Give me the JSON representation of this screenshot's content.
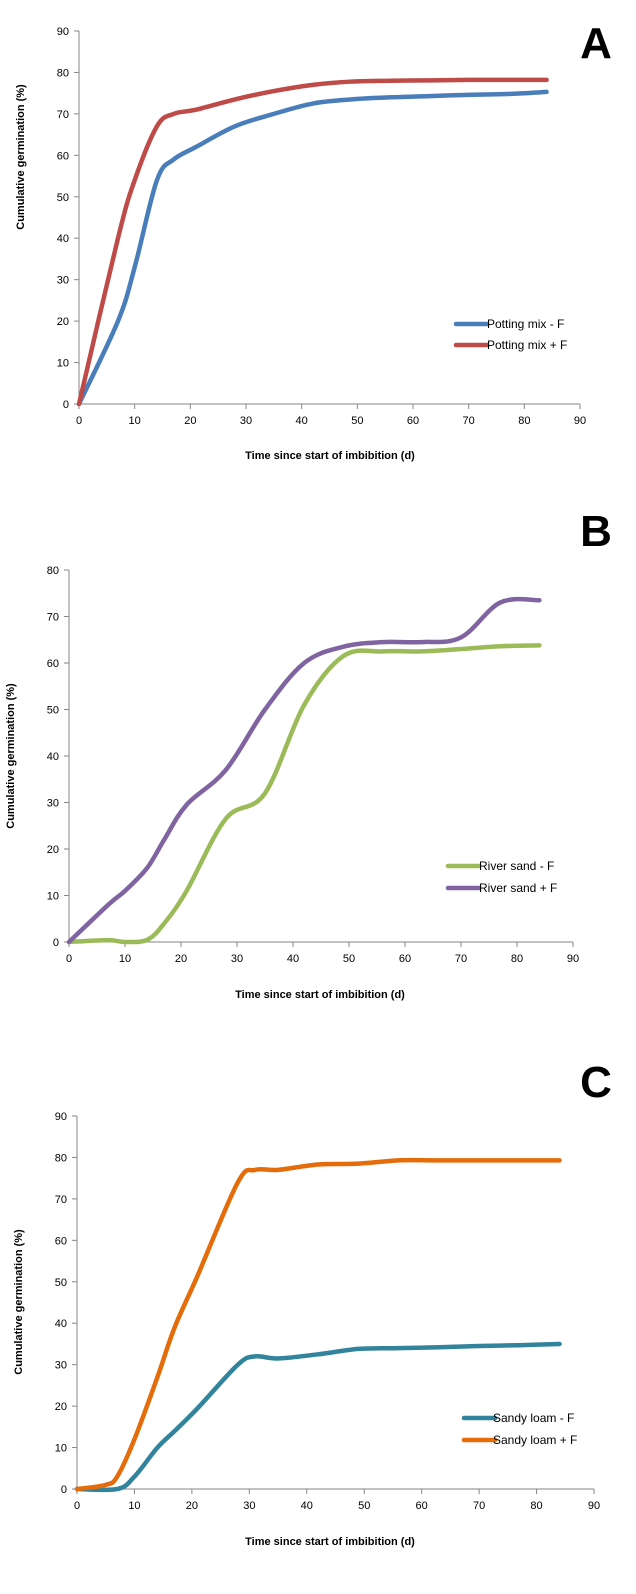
{
  "chart_data": [
    {
      "type": "line",
      "panel_label": "A",
      "xlabel": "Time since start of imbibition (d)",
      "ylabel": "Cumulative germination (%)",
      "xlim": [
        0,
        90
      ],
      "ylim": [
        0,
        90
      ],
      "xticks": [
        0,
        10,
        20,
        30,
        40,
        50,
        60,
        70,
        80,
        90
      ],
      "yticks": [
        0,
        10,
        20,
        30,
        40,
        50,
        60,
        70,
        80,
        90
      ],
      "grid": false,
      "legend_position": "bottom-right",
      "series": [
        {
          "name": "Potting mix - F",
          "color": "#4a7ebb",
          "x": [
            0,
            7,
            10,
            14,
            17,
            21,
            28,
            35,
            42,
            49,
            56,
            63,
            70,
            77,
            84
          ],
          "y": [
            0,
            20,
            33,
            54,
            59,
            62,
            67,
            70,
            72.5,
            73.5,
            74,
            74.3,
            74.6,
            74.8,
            75.3
          ]
        },
        {
          "name": "Potting mix + F",
          "color": "#be4b48",
          "x": [
            0,
            7,
            10,
            14,
            17,
            21,
            28,
            35,
            42,
            49,
            56,
            63,
            70,
            77,
            84
          ],
          "y": [
            0,
            40,
            54,
            67,
            70,
            71,
            73.5,
            75.5,
            77,
            77.8,
            78,
            78.1,
            78.2,
            78.2,
            78.2
          ]
        }
      ]
    },
    {
      "type": "line",
      "panel_label": "B",
      "xlabel": "Time since start of imbibition (d)",
      "ylabel": "Cumulative germination (%)",
      "xlim": [
        0,
        90
      ],
      "ylim": [
        0,
        80
      ],
      "xticks": [
        0,
        10,
        20,
        30,
        40,
        50,
        60,
        70,
        80,
        90
      ],
      "yticks": [
        0,
        10,
        20,
        30,
        40,
        50,
        60,
        70,
        80
      ],
      "grid": false,
      "legend_position": "bottom-right",
      "series": [
        {
          "name": "River sand - F",
          "color": "#9bbb59",
          "x": [
            0,
            7,
            10,
            14,
            17,
            21,
            28,
            35,
            42,
            49,
            56,
            63,
            70,
            77,
            84
          ],
          "y": [
            0,
            0.4,
            0,
            0.5,
            4,
            11,
            26.5,
            32,
            51,
            61.5,
            62.5,
            62.5,
            63,
            63.6,
            63.8
          ]
        },
        {
          "name": "River sand + F",
          "color": "#8064a2",
          "x": [
            0,
            7,
            10,
            14,
            17,
            21,
            28,
            35,
            42,
            49,
            56,
            63,
            70,
            77,
            84
          ],
          "y": [
            0,
            8,
            11,
            16,
            22,
            29.5,
            37,
            50,
            60,
            63.5,
            64.5,
            64.5,
            65.5,
            73,
            73.5
          ]
        }
      ]
    },
    {
      "type": "line",
      "panel_label": "C",
      "xlabel": "Time since start of imbibition (d)",
      "ylabel": "Cumulative germination (%)",
      "xlim": [
        0,
        90
      ],
      "ylim": [
        0,
        90
      ],
      "xticks": [
        0,
        10,
        20,
        30,
        40,
        50,
        60,
        70,
        80,
        90
      ],
      "yticks": [
        0,
        10,
        20,
        30,
        40,
        50,
        60,
        70,
        80,
        90
      ],
      "grid": false,
      "legend_position": "bottom-right",
      "series": [
        {
          "name": "Sandy loam - F",
          "color": "#31849b",
          "x": [
            0,
            7,
            10,
            14,
            17,
            21,
            28,
            31,
            35,
            42,
            49,
            56,
            63,
            70,
            77,
            84
          ],
          "y": [
            0,
            0,
            3,
            10,
            14,
            19.5,
            30,
            32,
            31.5,
            32.5,
            33.8,
            34,
            34.2,
            34.5,
            34.7,
            35
          ]
        },
        {
          "name": "Sandy loam + F",
          "color": "#e46c0a",
          "x": [
            0,
            5,
            7,
            10,
            14,
            17,
            21,
            28,
            31,
            35,
            42,
            49,
            56,
            63,
            70,
            77,
            84
          ],
          "y": [
            0,
            1,
            3,
            12,
            27,
            39,
            51.5,
            74,
            77,
            77,
            78.3,
            78.5,
            79.3,
            79.3,
            79.3,
            79.3,
            79.3
          ]
        }
      ]
    }
  ]
}
